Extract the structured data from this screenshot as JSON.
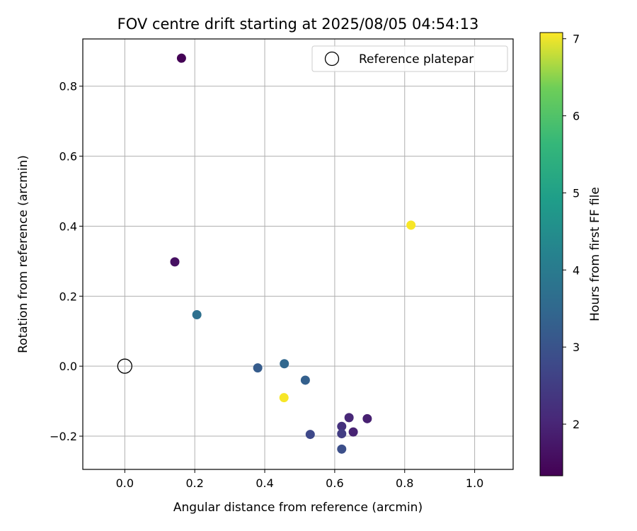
{
  "chart_data": {
    "type": "scatter",
    "title": "FOV centre drift starting at 2025/08/05 04:54:13",
    "xlabel": "Angular distance from reference (arcmin)",
    "ylabel": "Rotation from reference (arcmin)",
    "xlim": [
      -0.12,
      1.11
    ],
    "ylim": [
      -0.295,
      0.935
    ],
    "xticks": [
      0.0,
      0.2,
      0.4,
      0.6,
      0.8,
      1.0
    ],
    "yticks": [
      -0.2,
      0.0,
      0.2,
      0.4,
      0.6,
      0.8
    ],
    "xtick_labels": [
      "0.0",
      "0.2",
      "0.4",
      "0.6",
      "0.8",
      "1.0"
    ],
    "ytick_labels": [
      "−0.2",
      "0.0",
      "0.2",
      "0.4",
      "0.6",
      "0.8"
    ],
    "grid": true,
    "legend": {
      "placement": "top-right",
      "entries": [
        "Reference platepar"
      ]
    },
    "reference_point": {
      "x": 0.0,
      "y": 0.0
    },
    "colorbar": {
      "label": "Hours from first FF file",
      "colormap": "viridis",
      "range": [
        1.33,
        7.08
      ],
      "ticks": [
        2,
        3,
        4,
        5,
        6,
        7
      ],
      "tick_labels": [
        "2",
        "3",
        "4",
        "5",
        "6",
        "7"
      ]
    },
    "points": [
      {
        "x": 0.162,
        "y": 0.88,
        "hours": 1.35
      },
      {
        "x": 0.143,
        "y": 0.298,
        "hours": 1.6
      },
      {
        "x": 0.693,
        "y": -0.15,
        "hours": 1.9
      },
      {
        "x": 0.653,
        "y": -0.188,
        "hours": 1.95
      },
      {
        "x": 0.641,
        "y": -0.147,
        "hours": 2.05
      },
      {
        "x": 0.62,
        "y": -0.172,
        "hours": 2.25
      },
      {
        "x": 0.62,
        "y": -0.193,
        "hours": 2.5
      },
      {
        "x": 0.53,
        "y": -0.195,
        "hours": 2.75
      },
      {
        "x": 0.62,
        "y": -0.237,
        "hours": 2.9
      },
      {
        "x": 0.38,
        "y": -0.005,
        "hours": 3.2
      },
      {
        "x": 0.516,
        "y": -0.04,
        "hours": 3.3
      },
      {
        "x": 0.456,
        "y": 0.007,
        "hours": 3.5
      },
      {
        "x": 0.206,
        "y": 0.147,
        "hours": 3.7
      },
      {
        "x": 0.818,
        "y": 0.403,
        "hours": 7.05
      },
      {
        "x": 0.455,
        "y": -0.09,
        "hours": 7.05
      }
    ]
  }
}
